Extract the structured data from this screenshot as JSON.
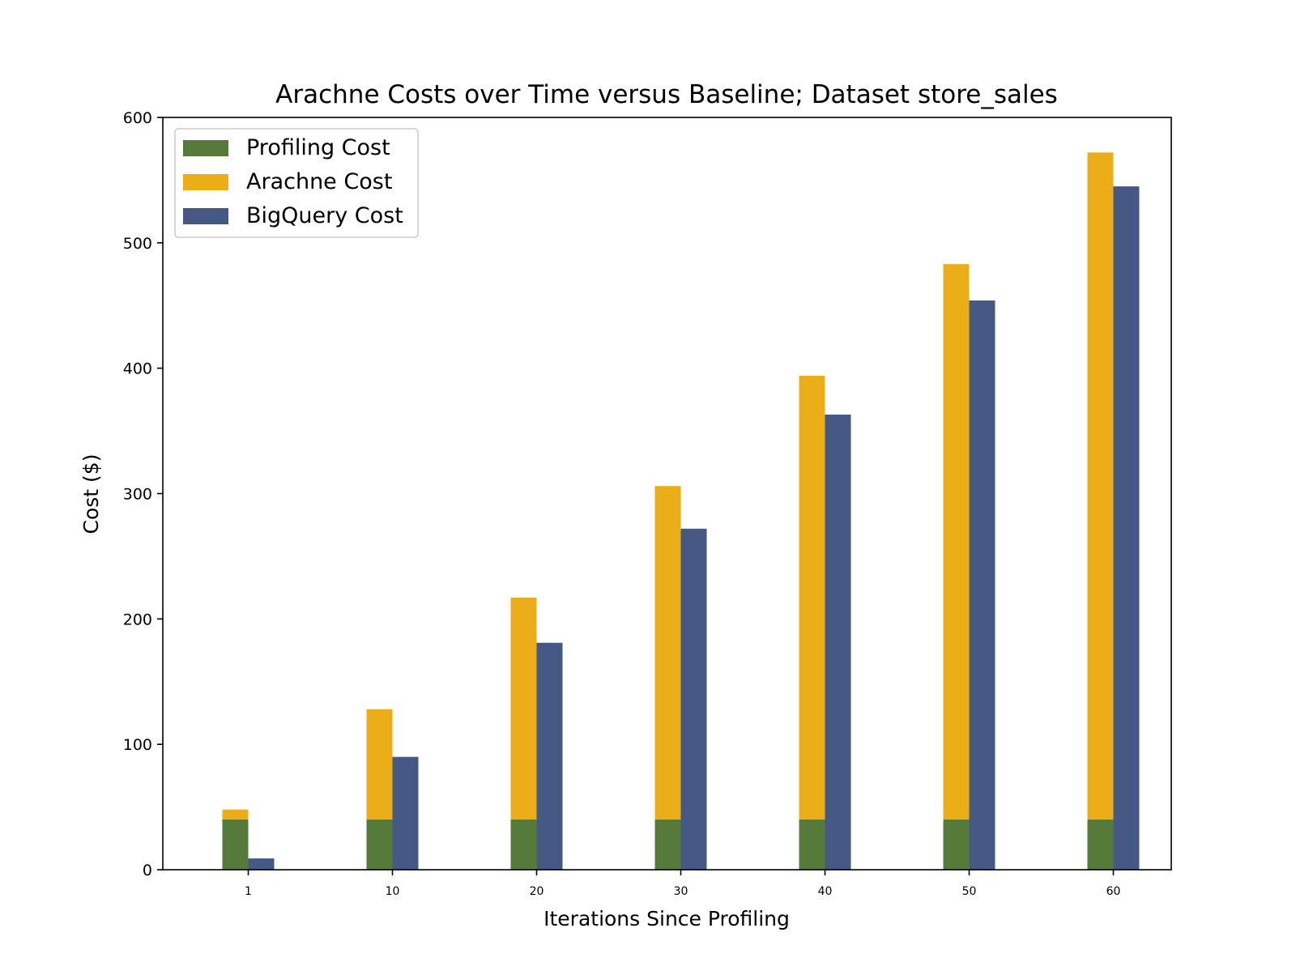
{
  "chart_data": {
    "type": "bar",
    "title": "Arachne Costs over Time versus Baseline; Dataset store_sales",
    "xlabel": "Iterations Since Profiling",
    "ylabel": "Cost ($)",
    "categories": [
      "1",
      "10",
      "20",
      "30",
      "40",
      "50",
      "60"
    ],
    "ylim": [
      0,
      600
    ],
    "yticks": [
      0,
      100,
      200,
      300,
      400,
      500,
      600
    ],
    "ytick_labels": [
      "0",
      "100",
      "200",
      "300",
      "400",
      "500",
      "600"
    ],
    "grid": false,
    "legend_position": "top-left",
    "series": [
      {
        "name": "Profiling Cost",
        "color": "#557a39",
        "values": [
          40,
          40,
          40,
          40,
          40,
          40,
          40
        ]
      },
      {
        "name": "Arachne Cost",
        "color": "#ebad18",
        "values": [
          48,
          128,
          217,
          306,
          394,
          483,
          572
        ]
      },
      {
        "name": "BigQuery Cost",
        "color": "#455984",
        "values": [
          9,
          90,
          181,
          272,
          363,
          454,
          545
        ]
      }
    ]
  }
}
